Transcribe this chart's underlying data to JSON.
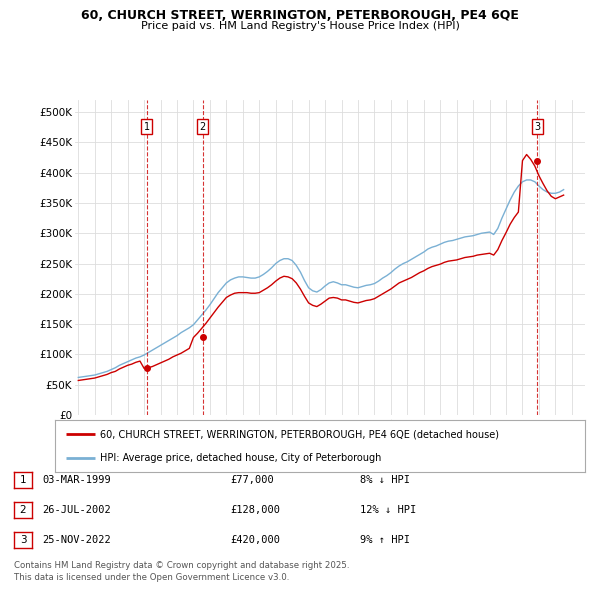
{
  "title_line1": "60, CHURCH STREET, WERRINGTON, PETERBOROUGH, PE4 6QE",
  "title_line2": "Price paid vs. HM Land Registry's House Price Index (HPI)",
  "yticks": [
    0,
    50000,
    100000,
    150000,
    200000,
    250000,
    300000,
    350000,
    400000,
    450000,
    500000
  ],
  "ytick_labels": [
    "£0",
    "£50K",
    "£100K",
    "£150K",
    "£200K",
    "£250K",
    "£300K",
    "£350K",
    "£400K",
    "£450K",
    "£500K"
  ],
  "ylim": [
    0,
    520000
  ],
  "xlim_start": 1994.8,
  "xlim_end": 2025.8,
  "xticks": [
    1995,
    1996,
    1997,
    1998,
    1999,
    2000,
    2001,
    2002,
    2003,
    2004,
    2005,
    2006,
    2007,
    2008,
    2009,
    2010,
    2011,
    2012,
    2013,
    2014,
    2015,
    2016,
    2017,
    2018,
    2019,
    2020,
    2021,
    2022,
    2023,
    2024,
    2025
  ],
  "sale_color": "#cc0000",
  "hpi_color": "#7ab0d4",
  "grid_color": "#dddddd",
  "bg_color": "#ffffff",
  "legend_label_sale": "60, CHURCH STREET, WERRINGTON, PETERBOROUGH, PE4 6QE (detached house)",
  "legend_label_hpi": "HPI: Average price, detached house, City of Peterborough",
  "transactions": [
    {
      "label": "1",
      "date": "03-MAR-1999",
      "price": 77000,
      "x": 1999.17,
      "pct": "8%",
      "direction": "↓"
    },
    {
      "label": "2",
      "date": "26-JUL-2002",
      "price": 128000,
      "x": 2002.57,
      "pct": "12%",
      "direction": "↓"
    },
    {
      "label": "3",
      "date": "25-NOV-2022",
      "price": 420000,
      "x": 2022.9,
      "pct": "9%",
      "direction": "↑"
    }
  ],
  "footnote_line1": "Contains HM Land Registry data © Crown copyright and database right 2025.",
  "footnote_line2": "This data is licensed under the Open Government Licence v3.0.",
  "hpi_data_x": [
    1995.0,
    1995.25,
    1995.5,
    1995.75,
    1996.0,
    1996.25,
    1996.5,
    1996.75,
    1997.0,
    1997.25,
    1997.5,
    1997.75,
    1998.0,
    1998.25,
    1998.5,
    1998.75,
    1999.0,
    1999.25,
    1999.5,
    1999.75,
    2000.0,
    2000.25,
    2000.5,
    2000.75,
    2001.0,
    2001.25,
    2001.5,
    2001.75,
    2002.0,
    2002.25,
    2002.5,
    2002.75,
    2003.0,
    2003.25,
    2003.5,
    2003.75,
    2004.0,
    2004.25,
    2004.5,
    2004.75,
    2005.0,
    2005.25,
    2005.5,
    2005.75,
    2006.0,
    2006.25,
    2006.5,
    2006.75,
    2007.0,
    2007.25,
    2007.5,
    2007.75,
    2008.0,
    2008.25,
    2008.5,
    2008.75,
    2009.0,
    2009.25,
    2009.5,
    2009.75,
    2010.0,
    2010.25,
    2010.5,
    2010.75,
    2011.0,
    2011.25,
    2011.5,
    2011.75,
    2012.0,
    2012.25,
    2012.5,
    2012.75,
    2013.0,
    2013.25,
    2013.5,
    2013.75,
    2014.0,
    2014.25,
    2014.5,
    2014.75,
    2015.0,
    2015.25,
    2015.5,
    2015.75,
    2016.0,
    2016.25,
    2016.5,
    2016.75,
    2017.0,
    2017.25,
    2017.5,
    2017.75,
    2018.0,
    2018.25,
    2018.5,
    2018.75,
    2019.0,
    2019.25,
    2019.5,
    2019.75,
    2020.0,
    2020.25,
    2020.5,
    2020.75,
    2021.0,
    2021.25,
    2021.5,
    2021.75,
    2022.0,
    2022.25,
    2022.5,
    2022.75,
    2023.0,
    2023.25,
    2023.5,
    2023.75,
    2024.0,
    2024.25,
    2024.5
  ],
  "hpi_data_y": [
    62000,
    63000,
    64000,
    65000,
    66000,
    68000,
    70000,
    72000,
    75000,
    78000,
    82000,
    85000,
    88000,
    91000,
    94000,
    96000,
    99000,
    103000,
    107000,
    111000,
    115000,
    119000,
    123000,
    127000,
    131000,
    136000,
    140000,
    144000,
    149000,
    157000,
    165000,
    173000,
    182000,
    192000,
    202000,
    210000,
    218000,
    223000,
    226000,
    228000,
    228000,
    227000,
    226000,
    226000,
    228000,
    232000,
    237000,
    243000,
    250000,
    255000,
    258000,
    258000,
    255000,
    247000,
    236000,
    222000,
    210000,
    205000,
    203000,
    207000,
    213000,
    218000,
    220000,
    218000,
    215000,
    215000,
    213000,
    211000,
    210000,
    212000,
    214000,
    215000,
    217000,
    221000,
    226000,
    230000,
    235000,
    241000,
    246000,
    250000,
    253000,
    257000,
    261000,
    265000,
    269000,
    274000,
    277000,
    279000,
    282000,
    285000,
    287000,
    288000,
    290000,
    292000,
    294000,
    295000,
    296000,
    298000,
    300000,
    301000,
    302000,
    298000,
    308000,
    325000,
    340000,
    355000,
    368000,
    378000,
    385000,
    388000,
    388000,
    385000,
    378000,
    372000,
    368000,
    366000,
    366000,
    368000,
    372000
  ],
  "sale_data_x": [
    1995.0,
    1995.25,
    1995.5,
    1995.75,
    1996.0,
    1996.25,
    1996.5,
    1996.75,
    1997.0,
    1997.25,
    1997.5,
    1997.75,
    1998.0,
    1998.25,
    1998.5,
    1998.75,
    1999.0,
    1999.25,
    1999.5,
    1999.75,
    2000.0,
    2000.25,
    2000.5,
    2000.75,
    2001.0,
    2001.25,
    2001.5,
    2001.75,
    2002.0,
    2002.25,
    2002.5,
    2002.75,
    2003.0,
    2003.25,
    2003.5,
    2003.75,
    2004.0,
    2004.25,
    2004.5,
    2004.75,
    2005.0,
    2005.25,
    2005.5,
    2005.75,
    2006.0,
    2006.25,
    2006.5,
    2006.75,
    2007.0,
    2007.25,
    2007.5,
    2007.75,
    2008.0,
    2008.25,
    2008.5,
    2008.75,
    2009.0,
    2009.25,
    2009.5,
    2009.75,
    2010.0,
    2010.25,
    2010.5,
    2010.75,
    2011.0,
    2011.25,
    2011.5,
    2011.75,
    2012.0,
    2012.25,
    2012.5,
    2012.75,
    2013.0,
    2013.25,
    2013.5,
    2013.75,
    2014.0,
    2014.25,
    2014.5,
    2014.75,
    2015.0,
    2015.25,
    2015.5,
    2015.75,
    2016.0,
    2016.25,
    2016.5,
    2016.75,
    2017.0,
    2017.25,
    2017.5,
    2017.75,
    2018.0,
    2018.25,
    2018.5,
    2018.75,
    2019.0,
    2019.25,
    2019.5,
    2019.75,
    2020.0,
    2020.25,
    2020.5,
    2020.75,
    2021.0,
    2021.25,
    2021.5,
    2021.75,
    2022.0,
    2022.25,
    2022.5,
    2022.75,
    2023.0,
    2023.25,
    2023.5,
    2023.75,
    2024.0,
    2024.25,
    2024.5
  ],
  "sale_data_y": [
    57000,
    58000,
    59000,
    60000,
    61000,
    63000,
    65000,
    67000,
    70000,
    72000,
    76000,
    79000,
    82000,
    84000,
    87000,
    89000,
    77000,
    78000,
    80000,
    83000,
    86000,
    89000,
    92000,
    96000,
    99000,
    102000,
    106000,
    110000,
    128000,
    135000,
    143000,
    151000,
    160000,
    169000,
    178000,
    186000,
    194000,
    198000,
    201000,
    202000,
    202000,
    202000,
    201000,
    201000,
    202000,
    206000,
    210000,
    215000,
    221000,
    226000,
    229000,
    228000,
    225000,
    218000,
    208000,
    196000,
    185000,
    181000,
    179000,
    183000,
    188000,
    193000,
    194000,
    193000,
    190000,
    190000,
    188000,
    186000,
    185000,
    187000,
    189000,
    190000,
    192000,
    196000,
    200000,
    204000,
    208000,
    213000,
    218000,
    221000,
    224000,
    227000,
    231000,
    235000,
    238000,
    242000,
    245000,
    247000,
    249000,
    252000,
    254000,
    255000,
    256000,
    258000,
    260000,
    261000,
    262000,
    264000,
    265000,
    266000,
    267000,
    264000,
    273000,
    288000,
    301000,
    315000,
    326000,
    335000,
    420000,
    430000,
    422000,
    411000,
    395000,
    382000,
    370000,
    361000,
    357000,
    360000,
    363000
  ]
}
